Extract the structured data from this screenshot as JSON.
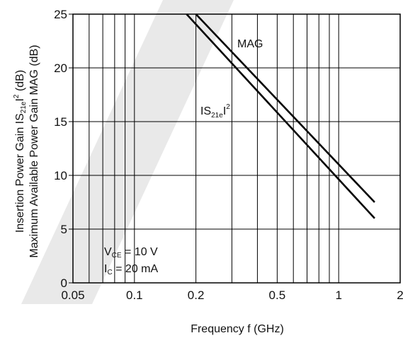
{
  "chart_data": {
    "type": "line",
    "x_scale": "log",
    "xlim": [
      0.05,
      2
    ],
    "ylim": [
      0,
      25
    ],
    "x_ticks": [
      {
        "value": 0.05,
        "label": "0.05"
      },
      {
        "value": 0.1,
        "label": "0.1"
      },
      {
        "value": 0.2,
        "label": "0.2"
      },
      {
        "value": 0.5,
        "label": "0.5"
      },
      {
        "value": 1,
        "label": "1"
      },
      {
        "value": 2,
        "label": "2"
      }
    ],
    "y_ticks": [
      {
        "value": 0,
        "label": "0"
      },
      {
        "value": 5,
        "label": "5"
      },
      {
        "value": 10,
        "label": "10"
      },
      {
        "value": 15,
        "label": "15"
      },
      {
        "value": 20,
        "label": "20"
      },
      {
        "value": 25,
        "label": "25"
      }
    ],
    "grid": true,
    "xlabel": "Frequency  f (GHz)",
    "ylabel_line1": {
      "main": "Insertion Power Gain  IS",
      "sub": "21e",
      "mid": "I",
      "sup": "2",
      "tail": " (dB)"
    },
    "ylabel_line2": "Maximum Available Power Gain  MAG (dB)",
    "series": [
      {
        "name": "MAG",
        "color": "#000000",
        "x": [
          0.2,
          1.5
        ],
        "y": [
          25,
          7.5
        ]
      },
      {
        "name": "IS21eI2",
        "color": "#000000",
        "x": [
          0.18,
          1.5
        ],
        "y": [
          25,
          6
        ]
      }
    ],
    "annotations": {
      "mag_label": "MAG",
      "s21_label": {
        "main": "IS",
        "sub": "21e",
        "mid": "I",
        "sup": "2"
      },
      "vce": {
        "prefix": "V",
        "sub": "CE",
        "rest": " = 10 V"
      },
      "ic": {
        "prefix": "I",
        "sub": "C",
        "rest": " = 20 mA"
      }
    }
  },
  "watermark_color": "#e9e9e9"
}
